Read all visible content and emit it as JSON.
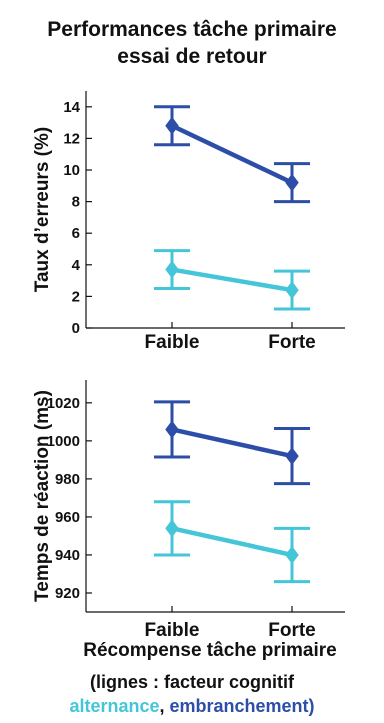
{
  "title_line1": "Performances tâche primaire",
  "title_line2": "essai de retour",
  "note_line1": "(lignes : facteur cognitif",
  "note_alt": "alternance",
  "note_sep": ", ",
  "note_emb": "embranchement",
  "note_close": ")",
  "colors": {
    "alternance": "#45c6d8",
    "embranchement": "#2d4ea8"
  },
  "chart_data": [
    {
      "type": "line",
      "categories": [
        "Faible",
        "Forte"
      ],
      "ylabel": "Taux d’erreurs (%)",
      "xlabel": "",
      "ylim": [
        0,
        15
      ],
      "yticks": [
        0,
        2,
        4,
        6,
        8,
        10,
        12,
        14
      ],
      "series": [
        {
          "name": "embranchement",
          "values": [
            12.8,
            9.2
          ],
          "errors": [
            1.2,
            1.2
          ],
          "color": "#2d4ea8"
        },
        {
          "name": "alternance",
          "values": [
            3.7,
            2.4
          ],
          "errors": [
            1.2,
            1.2
          ],
          "color": "#45c6d8"
        }
      ]
    },
    {
      "type": "line",
      "categories": [
        "Faible",
        "Forte"
      ],
      "ylabel": "Temps de réaction (ms)",
      "xlabel": "Récompense tâche primaire",
      "ylim": [
        910,
        1032
      ],
      "yticks": [
        920,
        940,
        960,
        980,
        1000,
        1020
      ],
      "series": [
        {
          "name": "embranchement",
          "values": [
            1006,
            992
          ],
          "errors": [
            14.5,
            14.5
          ],
          "color": "#2d4ea8"
        },
        {
          "name": "alternance",
          "values": [
            954,
            940
          ],
          "errors": [
            14,
            14
          ],
          "color": "#45c6d8"
        }
      ]
    }
  ]
}
